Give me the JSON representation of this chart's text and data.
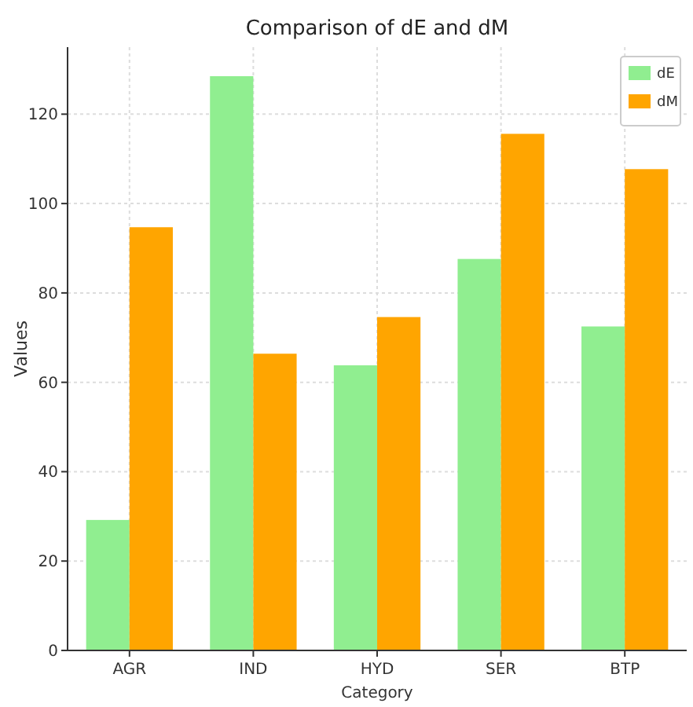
{
  "chart_data": {
    "type": "bar",
    "title": "Comparison of dE and dM",
    "xlabel": "Category",
    "ylabel": "Values",
    "categories": [
      "AGR",
      "IND",
      "HYD",
      "SER",
      "BTP"
    ],
    "series": [
      {
        "name": "dE",
        "color": "#90ee90",
        "values": [
          29.2,
          128.5,
          63.8,
          87.6,
          72.5
        ]
      },
      {
        "name": "dM",
        "color": "#ffa500",
        "values": [
          94.7,
          66.4,
          74.6,
          115.6,
          107.7
        ]
      }
    ],
    "ylim": [
      0,
      135
    ],
    "yticks": [
      0,
      20,
      40,
      60,
      80,
      100,
      120
    ],
    "grid": true,
    "legend": "top right"
  }
}
